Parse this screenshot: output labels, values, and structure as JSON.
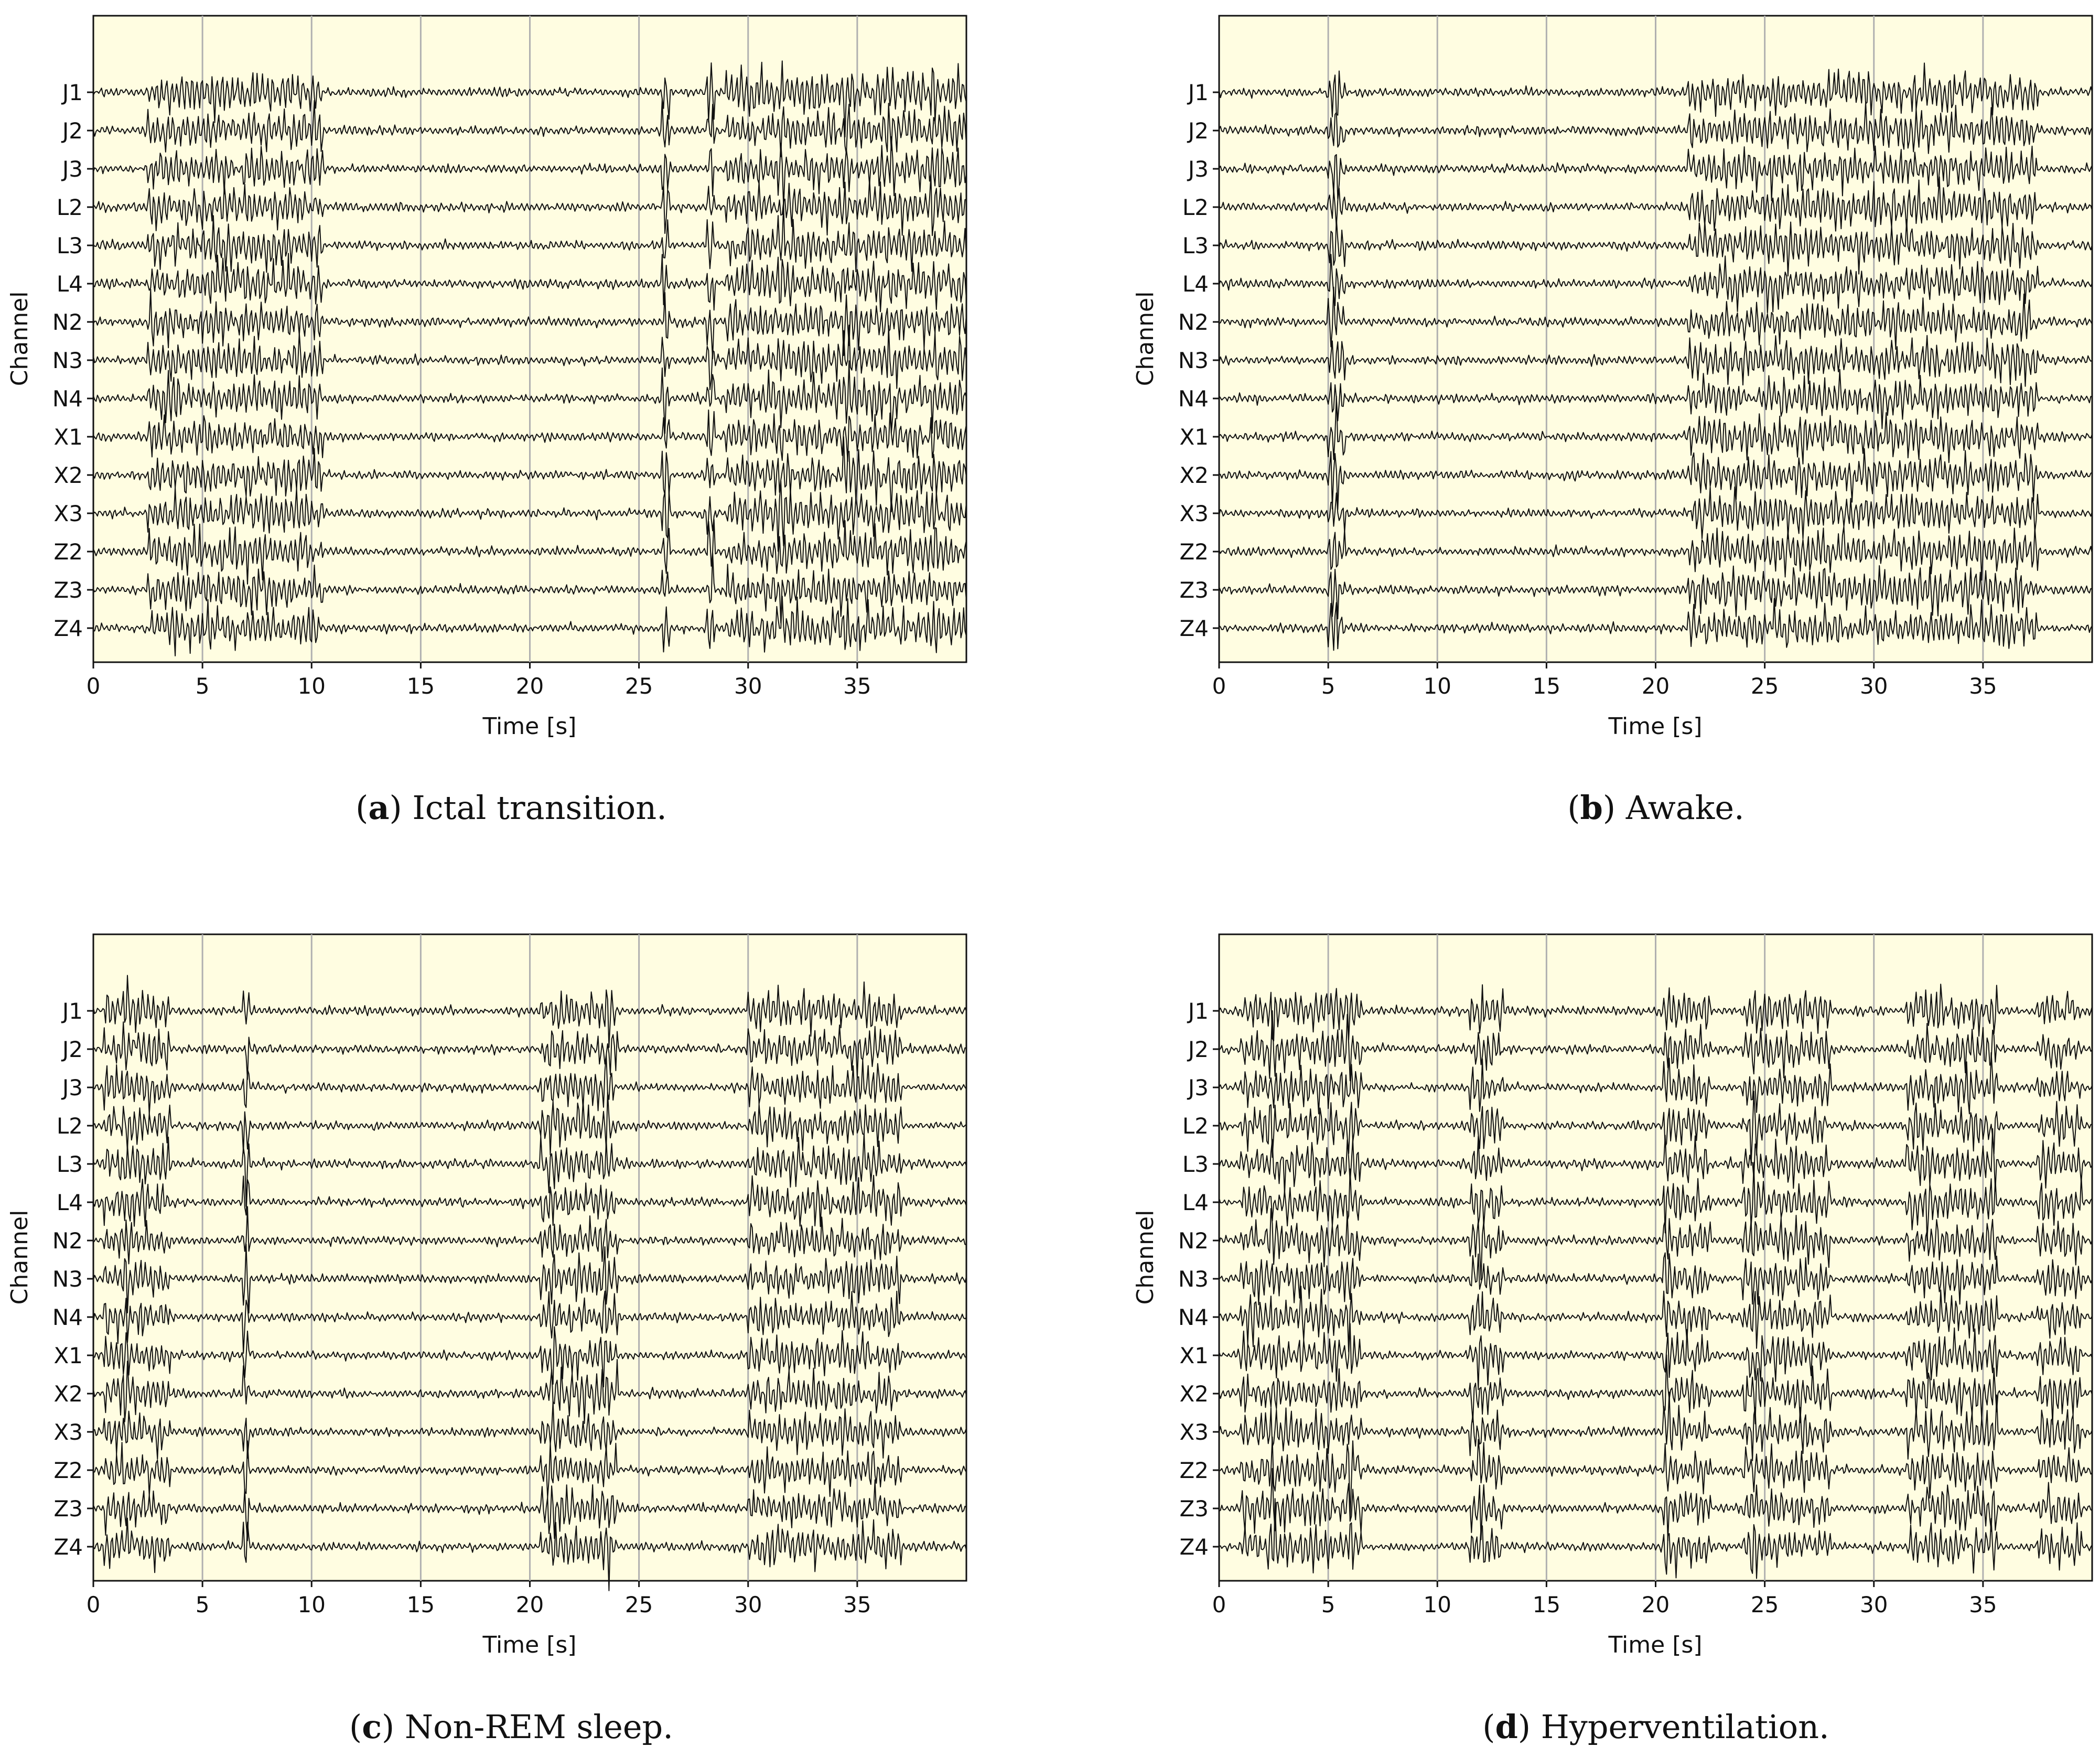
{
  "colors": {
    "plot_background": "#fffde1",
    "trace": "#111111",
    "grid": "#b0b0b0",
    "text": "#111111"
  },
  "chart_data": [
    {
      "type": "line",
      "panel_label": "a",
      "caption": "Ictal transition.",
      "xlabel": "Time [s]",
      "ylabel": "Channel",
      "xlim": [
        0,
        40
      ],
      "xticks": [
        0,
        5,
        10,
        15,
        20,
        25,
        30,
        35
      ],
      "grid": "vertical",
      "channels": [
        "J1",
        "J2",
        "J3",
        "L2",
        "L3",
        "L4",
        "N2",
        "N3",
        "N4",
        "X1",
        "X2",
        "X3",
        "Z2",
        "Z3",
        "Z4"
      ],
      "burst_intervals_s": [
        [
          2.5,
          10.5
        ],
        [
          29.0,
          40.0
        ]
      ],
      "large_spikes_s": [
        26.2,
        28.3,
        31.5,
        34.5,
        36.5,
        38.5
      ]
    },
    {
      "type": "line",
      "panel_label": "b",
      "caption": "Awake.",
      "xlabel": "Time [s]",
      "ylabel": "Channel",
      "xlim": [
        0,
        40
      ],
      "xticks": [
        0,
        5,
        10,
        15,
        20,
        25,
        30,
        35
      ],
      "grid": "vertical",
      "channels": [
        "J1",
        "J2",
        "J3",
        "L2",
        "L3",
        "L4",
        "N2",
        "N3",
        "N4",
        "X1",
        "X2",
        "X3",
        "Z2",
        "Z3",
        "Z4"
      ],
      "burst_intervals_s": [
        [
          5.0,
          5.8
        ],
        [
          21.5,
          37.5
        ]
      ],
      "large_spikes_s": [
        5.3
      ]
    },
    {
      "type": "line",
      "panel_label": "c",
      "caption": "Non-REM sleep.",
      "xlabel": "Time [s]",
      "ylabel": "Channel",
      "xlim": [
        0,
        40
      ],
      "xticks": [
        0,
        5,
        10,
        15,
        20,
        25,
        30,
        35
      ],
      "grid": "vertical",
      "channels": [
        "J1",
        "J2",
        "J3",
        "L2",
        "L3",
        "L4",
        "N2",
        "N3",
        "N4",
        "X1",
        "X2",
        "X3",
        "Z2",
        "Z3",
        "Z4"
      ],
      "burst_intervals_s": [
        [
          0.5,
          3.5
        ],
        [
          20.5,
          24.0
        ],
        [
          30.0,
          37.0
        ]
      ],
      "large_spikes_s": [
        1.5,
        7.0,
        21.0,
        23.5
      ]
    },
    {
      "type": "line",
      "panel_label": "d",
      "caption": "Hyperventilation.",
      "xlabel": "Time [s]",
      "ylabel": "Channel",
      "xlim": [
        0,
        40
      ],
      "xticks": [
        0,
        5,
        10,
        15,
        20,
        25,
        30,
        35
      ],
      "grid": "vertical",
      "channels": [
        "J1",
        "J2",
        "J3",
        "L2",
        "L3",
        "L4",
        "N2",
        "N3",
        "N4",
        "X1",
        "X2",
        "X3",
        "Z2",
        "Z3",
        "Z4"
      ],
      "burst_intervals_s": [
        [
          1.0,
          6.5
        ],
        [
          11.5,
          13.0
        ],
        [
          20.5,
          22.5
        ],
        [
          24.0,
          28.0
        ],
        [
          31.5,
          35.5
        ],
        [
          37.5,
          39.5
        ]
      ],
      "large_spikes_s": [
        2.5,
        6.0,
        12.0,
        20.5,
        24.5,
        32.5,
        35.5
      ]
    }
  ]
}
